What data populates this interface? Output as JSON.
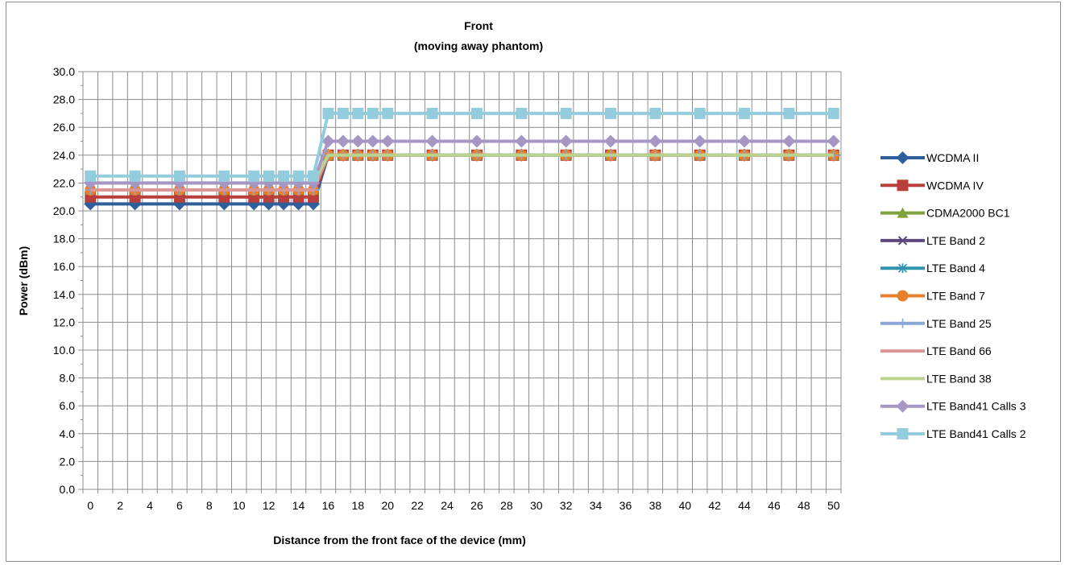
{
  "chart_data": {
    "type": "line",
    "title": [
      "Front",
      "(moving away phantom)"
    ],
    "xlabel": "Distance from the front face of the device (mm)",
    "ylabel": "Power (dBm)",
    "ylim": [
      0,
      30
    ],
    "y_ticks": [
      "0.0",
      "2.0",
      "4.0",
      "6.0",
      "8.0",
      "10.0",
      "12.0",
      "14.0",
      "16.0",
      "18.0",
      "20.0",
      "22.0",
      "24.0",
      "26.0",
      "28.0",
      "30.0"
    ],
    "x_ticks": [
      "0",
      "2",
      "4",
      "6",
      "8",
      "10",
      "12",
      "14",
      "16",
      "18",
      "20",
      "22",
      "24",
      "26",
      "28",
      "30",
      "32",
      "34",
      "36",
      "38",
      "40",
      "42",
      "44",
      "46",
      "48",
      "50"
    ],
    "categories": [
      0,
      1,
      2,
      3,
      4,
      5,
      6,
      7,
      8,
      9,
      10,
      11,
      12,
      13,
      14,
      15,
      16,
      17,
      18,
      19,
      20,
      21,
      22,
      23,
      24,
      25,
      26,
      27,
      28,
      29,
      30,
      31,
      32,
      33,
      34,
      35,
      36,
      37,
      38,
      39,
      40,
      41,
      42,
      43,
      44,
      45,
      46,
      47,
      48,
      49,
      50
    ],
    "x": [
      0,
      3,
      6,
      9,
      11,
      12,
      13,
      14,
      15,
      16,
      17,
      18,
      19,
      20,
      23,
      26,
      29,
      32,
      35,
      38,
      41,
      44,
      47,
      50
    ],
    "grid": true,
    "legend_position": "right",
    "series": [
      {
        "name": "WCDMA II",
        "color": "#2e5f9a",
        "marker": "diamond",
        "values": [
          20.5,
          20.5,
          20.5,
          20.5,
          20.5,
          20.5,
          20.5,
          20.5,
          20.5,
          24.0,
          24.0,
          24.0,
          24.0,
          24.0,
          24.0,
          24.0,
          24.0,
          24.0,
          24.0,
          24.0,
          24.0,
          24.0,
          24.0,
          24.0
        ]
      },
      {
        "name": "WCDMA IV",
        "color": "#b83f3c",
        "marker": "square",
        "values": [
          21.0,
          21.0,
          21.0,
          21.0,
          21.0,
          21.0,
          21.0,
          21.0,
          21.0,
          24.0,
          24.0,
          24.0,
          24.0,
          24.0,
          24.0,
          24.0,
          24.0,
          24.0,
          24.0,
          24.0,
          24.0,
          24.0,
          24.0,
          24.0
        ]
      },
      {
        "name": "CDMA2000 BC1",
        "color": "#7fa03a",
        "marker": "triangle",
        "values": [
          21.5,
          21.5,
          21.5,
          21.5,
          21.5,
          21.5,
          21.5,
          21.5,
          21.5,
          24.0,
          24.0,
          24.0,
          24.0,
          24.0,
          24.0,
          24.0,
          24.0,
          24.0,
          24.0,
          24.0,
          24.0,
          24.0,
          24.0,
          24.0
        ]
      },
      {
        "name": "LTE Band 2",
        "color": "#5e467f",
        "marker": "x",
        "values": [
          21.5,
          21.5,
          21.5,
          21.5,
          21.5,
          21.5,
          21.5,
          21.5,
          21.5,
          24.0,
          24.0,
          24.0,
          24.0,
          24.0,
          24.0,
          24.0,
          24.0,
          24.0,
          24.0,
          24.0,
          24.0,
          24.0,
          24.0,
          24.0
        ]
      },
      {
        "name": "LTE Band 4",
        "color": "#2f93ad",
        "marker": "star",
        "values": [
          21.5,
          21.5,
          21.5,
          21.5,
          21.5,
          21.5,
          21.5,
          21.5,
          21.5,
          24.0,
          24.0,
          24.0,
          24.0,
          24.0,
          24.0,
          24.0,
          24.0,
          24.0,
          24.0,
          24.0,
          24.0,
          24.0,
          24.0,
          24.0
        ]
      },
      {
        "name": "LTE Band 7",
        "color": "#e6802c",
        "marker": "circle",
        "values": [
          21.5,
          21.5,
          21.5,
          21.5,
          21.5,
          21.5,
          21.5,
          21.5,
          21.5,
          24.0,
          24.0,
          24.0,
          24.0,
          24.0,
          24.0,
          24.0,
          24.0,
          24.0,
          24.0,
          24.0,
          24.0,
          24.0,
          24.0,
          24.0
        ]
      },
      {
        "name": "LTE Band 25",
        "color": "#8aa6d6",
        "marker": "plus",
        "values": [
          21.5,
          21.5,
          21.5,
          21.5,
          21.5,
          21.5,
          21.5,
          21.5,
          21.5,
          24.0,
          24.0,
          24.0,
          24.0,
          24.0,
          24.0,
          24.0,
          24.0,
          24.0,
          24.0,
          24.0,
          24.0,
          24.0,
          24.0,
          24.0
        ]
      },
      {
        "name": "LTE Band 66",
        "color": "#d99694",
        "marker": "none",
        "values": [
          21.5,
          21.5,
          21.5,
          21.5,
          21.5,
          21.5,
          21.5,
          21.5,
          21.5,
          24.0,
          24.0,
          24.0,
          24.0,
          24.0,
          24.0,
          24.0,
          24.0,
          24.0,
          24.0,
          24.0,
          24.0,
          24.0,
          24.0,
          24.0
        ]
      },
      {
        "name": "LTE Band 38",
        "color": "#b7d38f",
        "marker": "none",
        "values": [
          22.0,
          22.0,
          22.0,
          22.0,
          22.0,
          22.0,
          22.0,
          22.0,
          22.0,
          24.0,
          24.0,
          24.0,
          24.0,
          24.0,
          24.0,
          24.0,
          24.0,
          24.0,
          24.0,
          24.0,
          24.0,
          24.0,
          24.0,
          24.0
        ]
      },
      {
        "name": "LTE Band41 Calls 3",
        "color": "#a596c4",
        "marker": "diamond",
        "values": [
          22.0,
          22.0,
          22.0,
          22.0,
          22.0,
          22.0,
          22.0,
          22.0,
          22.0,
          25.0,
          25.0,
          25.0,
          25.0,
          25.0,
          25.0,
          25.0,
          25.0,
          25.0,
          25.0,
          25.0,
          25.0,
          25.0,
          25.0,
          25.0
        ]
      },
      {
        "name": "LTE Band41 Calls 2",
        "color": "#93cddd",
        "marker": "square",
        "values": [
          22.5,
          22.5,
          22.5,
          22.5,
          22.5,
          22.5,
          22.5,
          22.5,
          22.5,
          27.0,
          27.0,
          27.0,
          27.0,
          27.0,
          27.0,
          27.0,
          27.0,
          27.0,
          27.0,
          27.0,
          27.0,
          27.0,
          27.0,
          27.0
        ]
      }
    ]
  }
}
